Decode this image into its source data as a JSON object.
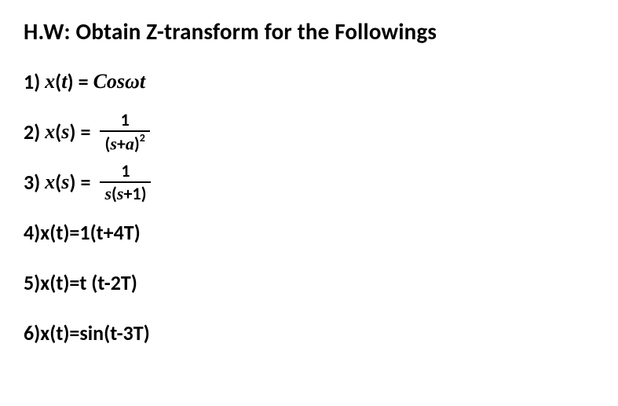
{
  "heading": "H.W: Obtain Z-transform for the Followings",
  "items": {
    "p1": {
      "num": "1)",
      "var": "x",
      "arg": "t",
      "rhs_plain": "Cosωt"
    },
    "p2": {
      "num": "2)",
      "var": "x",
      "arg": "s",
      "frac": {
        "numr": "1",
        "den_pre": "(",
        "den_s": "s",
        "den_op": "+",
        "den_a": "a",
        "den_post": ")",
        "den_exp": "2"
      }
    },
    "p3": {
      "num": "3)",
      "var": "x",
      "arg": "s",
      "frac": {
        "numr": "1",
        "den_s1": "s",
        "den_open": "(",
        "den_s2": "s",
        "den_op": "+",
        "den_one": "1",
        "den_close": ")"
      }
    },
    "p4": {
      "text": "4)x(t)=1(t+4T)"
    },
    "p5": {
      "text": "5)x(t)=t (t-2T)"
    },
    "p6": {
      "text": "6)x(t)=sin(t-3T)"
    }
  },
  "style": {
    "page_bg": "#ffffff",
    "text_color": "#000000",
    "heading_fontsize": 29,
    "line_fontsize": 26,
    "frac_fontsize": 22,
    "sup_fontsize": 14,
    "font_weight": 700
  }
}
